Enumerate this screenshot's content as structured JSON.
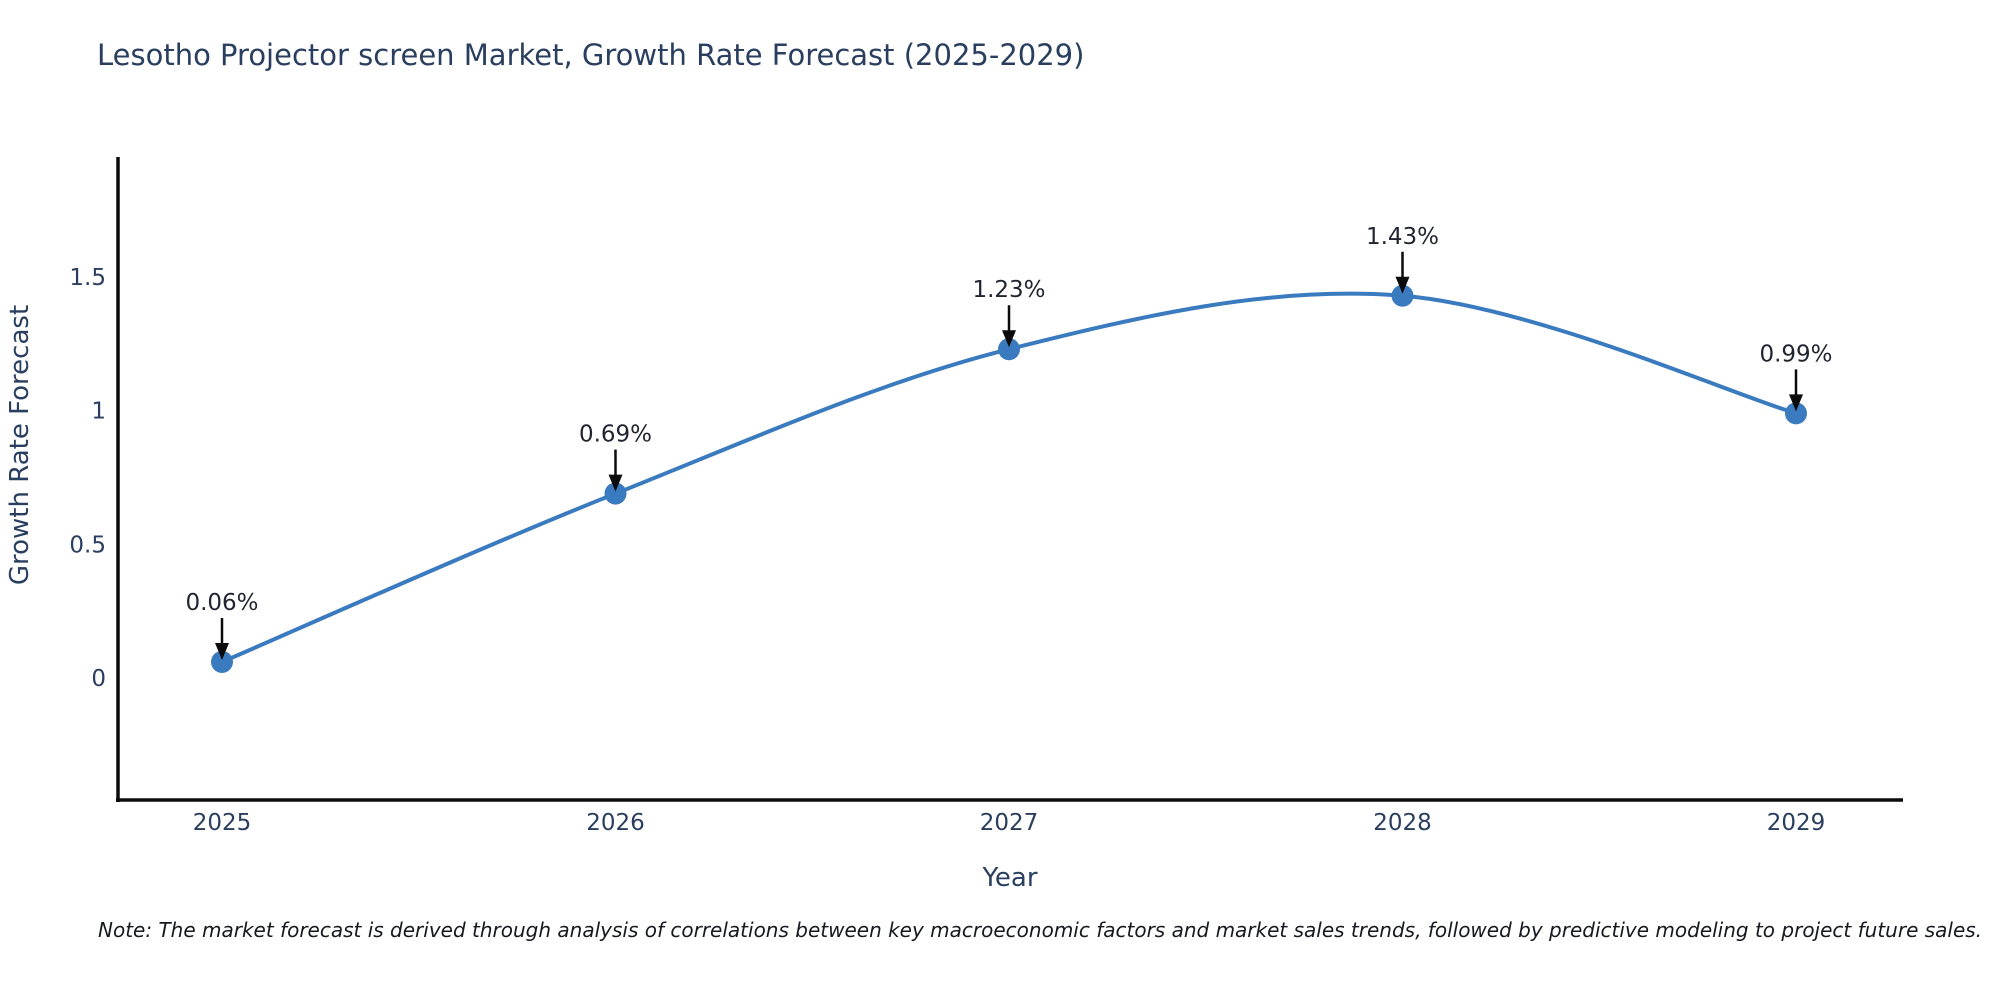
{
  "title": "Lesotho Projector screen Market, Growth Rate Forecast (2025-2029)",
  "note": "Note: The market forecast is derived through analysis of correlations between key macroeconomic factors and market sales trends, followed by predictive modeling to project future sales.",
  "chart_data": {
    "type": "line",
    "title": "Lesotho Projector screen Market, Growth Rate Forecast (2025-2029)",
    "xlabel": "Year",
    "ylabel": "Growth Rate Forecast",
    "categories": [
      "2025",
      "2026",
      "2027",
      "2028",
      "2029"
    ],
    "values": [
      0.06,
      0.69,
      1.23,
      1.43,
      0.99
    ],
    "point_labels": [
      "0.06%",
      "0.69%",
      "1.23%",
      "1.43%",
      "0.99%"
    ],
    "yticks": [
      0,
      0.5,
      1,
      1.5
    ],
    "ylim": [
      -0.46,
      1.95
    ],
    "grid": false,
    "legend_position": "none",
    "line_shape": "spline",
    "line_color": "#3a7bbf",
    "marker_color": "#3a7bbf",
    "spine_color": "#0b0b0b",
    "tick_color": "#2a3f5f",
    "axis_title_color": "#2a3f5f",
    "annotation_color": "#1f2430",
    "background_color": "#ffffff"
  }
}
